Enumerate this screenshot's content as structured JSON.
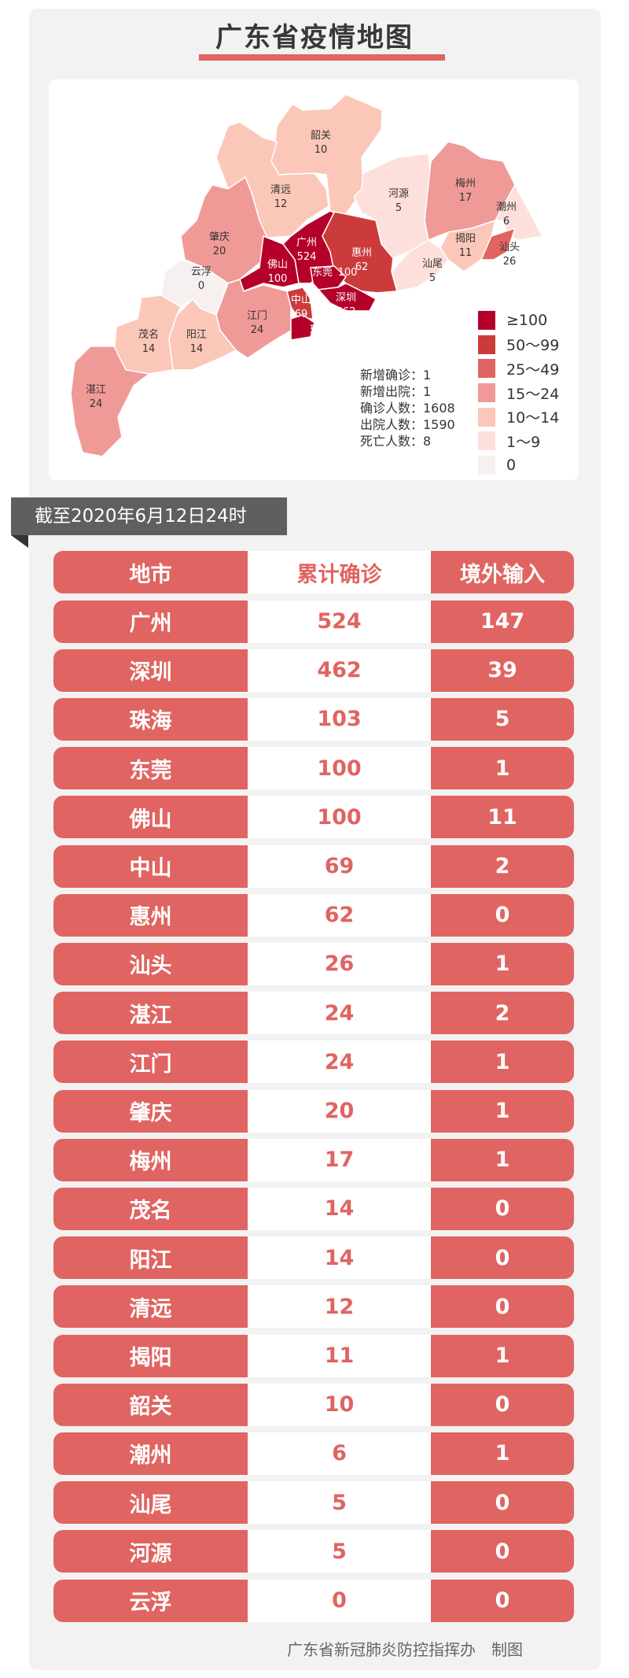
{
  "title": "广东省疫情地图",
  "colors": {
    "accent": "#e06461",
    "ge100": "#b5002a",
    "r50_99": "#cc3b3b",
    "r25_49": "#e06461",
    "r15_24": "#f09a98",
    "r10_14": "#fbc7b9",
    "r1_9": "#fde0dc",
    "r0": "#f7f0f0"
  },
  "map": {
    "regions": [
      {
        "name": "韶关",
        "value": "10"
      },
      {
        "name": "清远",
        "value": "12"
      },
      {
        "name": "河源",
        "value": "5"
      },
      {
        "name": "梅州",
        "value": "17"
      },
      {
        "name": "潮州",
        "value": "6"
      },
      {
        "name": "揭阳",
        "value": "11"
      },
      {
        "name": "汕头",
        "value": "26"
      },
      {
        "name": "肇庆",
        "value": "20"
      },
      {
        "name": "广州",
        "value": "524"
      },
      {
        "name": "惠州",
        "value": "62"
      },
      {
        "name": "佛山",
        "value": "100"
      },
      {
        "name": "东莞",
        "value": "100"
      },
      {
        "name": "云浮",
        "value": "0"
      },
      {
        "name": "汕尾",
        "value": "5"
      },
      {
        "name": "深圳",
        "value": "462"
      },
      {
        "name": "中山",
        "value": "69"
      },
      {
        "name": "江门",
        "value": "24"
      },
      {
        "name": "珠海",
        "value": "103"
      },
      {
        "name": "茂名",
        "value": "14"
      },
      {
        "name": "阳江",
        "value": "14"
      },
      {
        "name": "湛江",
        "value": "24"
      }
    ],
    "legend": [
      "≥100",
      "50～99",
      "25～49",
      "15～24",
      "10～14",
      "1～9",
      "0"
    ],
    "stats": [
      "新增确诊：1",
      "新增出院：1",
      "确诊人数：1608",
      "出院人数：1590",
      "死亡人数：8"
    ]
  },
  "as_of": "截至2020年6月12日24时",
  "table": {
    "headers": [
      "地市",
      "累计确诊",
      "境外输入"
    ],
    "rows": [
      [
        "广州",
        "524",
        "147"
      ],
      [
        "深圳",
        "462",
        "39"
      ],
      [
        "珠海",
        "103",
        "5"
      ],
      [
        "东莞",
        "100",
        "1"
      ],
      [
        "佛山",
        "100",
        "11"
      ],
      [
        "中山",
        "69",
        "2"
      ],
      [
        "惠州",
        "62",
        "0"
      ],
      [
        "汕头",
        "26",
        "1"
      ],
      [
        "湛江",
        "24",
        "2"
      ],
      [
        "江门",
        "24",
        "1"
      ],
      [
        "肇庆",
        "20",
        "1"
      ],
      [
        "梅州",
        "17",
        "1"
      ],
      [
        "茂名",
        "14",
        "0"
      ],
      [
        "阳江",
        "14",
        "0"
      ],
      [
        "清远",
        "12",
        "0"
      ],
      [
        "揭阳",
        "11",
        "1"
      ],
      [
        "韶关",
        "10",
        "0"
      ],
      [
        "潮州",
        "6",
        "1"
      ],
      [
        "汕尾",
        "5",
        "0"
      ],
      [
        "河源",
        "5",
        "0"
      ],
      [
        "云浮",
        "0",
        "0"
      ]
    ]
  },
  "footer": "广东省新冠肺炎防控指挥办　制图"
}
